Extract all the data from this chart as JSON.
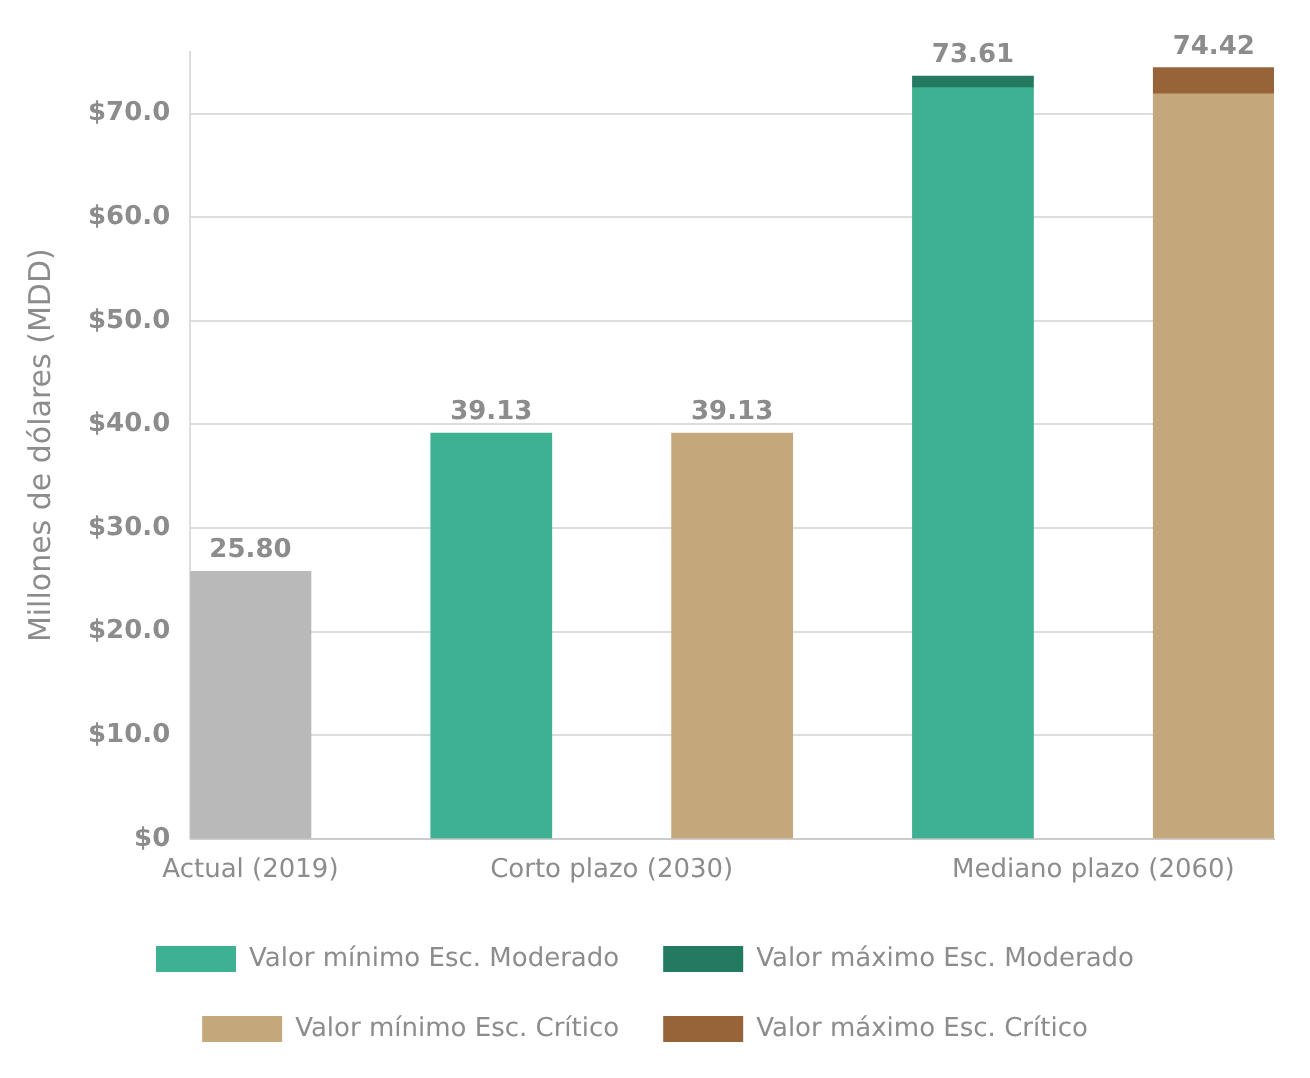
{
  "chart_data": {
    "type": "bar",
    "stacked": true,
    "categories": [
      "Actual (2019)",
      null,
      null,
      "Corto plazo (2030)",
      null,
      null,
      null,
      "Mediano plazo (2060)",
      null
    ],
    "ylabel": "Millones de dólares (MDD)",
    "series": [
      {
        "color": "#b9b9b9",
        "values": [
          25.8,
          null,
          null,
          null,
          null,
          null,
          null,
          null,
          null
        ]
      },
      {
        "name": "Valor mínimo Esc. Moderado",
        "color": "#3db191",
        "values": [
          null,
          null,
          39.13,
          null,
          null,
          null,
          72.5,
          null,
          null
        ]
      },
      {
        "name": "Valor máximo Esc. Moderado",
        "color": "#237a60",
        "values": [
          null,
          null,
          null,
          null,
          null,
          null,
          1.11,
          null,
          null
        ]
      },
      {
        "name": "Valor mínimo Esc. Crítico",
        "color": "#c4a77a",
        "values": [
          null,
          null,
          null,
          null,
          39.13,
          null,
          null,
          null,
          71.9
        ]
      },
      {
        "name": "Valor máximo Esc. Crítico",
        "color": "#97643a",
        "values": [
          null,
          null,
          null,
          null,
          null,
          null,
          null,
          null,
          2.52
        ]
      }
    ],
    "totals": [
      "25.80",
      null,
      "39.13",
      null,
      "39.13",
      null,
      "73.61",
      null,
      "74.42"
    ],
    "ylim": [
      0,
      76
    ],
    "yticks": [
      {
        "value": 0,
        "label": "$0"
      },
      {
        "value": 10,
        "label": "$10.0"
      },
      {
        "value": 20,
        "label": "$20.0"
      },
      {
        "value": 30,
        "label": "$30.0"
      },
      {
        "value": 40,
        "label": "$40.0"
      },
      {
        "value": 50,
        "label": "$50.0"
      },
      {
        "value": 60,
        "label": "$60.0"
      },
      {
        "value": 70,
        "label": "$70.0"
      }
    ],
    "grid": "y",
    "legend": "bottom"
  }
}
